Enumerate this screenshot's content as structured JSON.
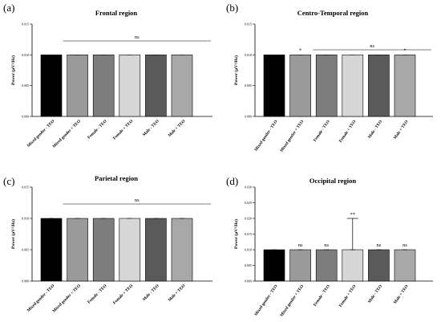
{
  "figure": {
    "panels": [
      {
        "letter": "(a)",
        "title": "Frontal region",
        "ylabel": "Power (µV²/Hz)",
        "sig_bracket": "ns",
        "bar_marks": [
          "",
          "",
          "",
          "",
          "",
          ""
        ]
      },
      {
        "letter": "(b)",
        "title": "Centro-Temporal region",
        "ylabel": "Power (µV²/Hz)",
        "sig_bracket": "ns",
        "bar_marks": [
          "",
          "*",
          "",
          "",
          "",
          "*"
        ]
      },
      {
        "letter": "(c)",
        "title": "Parietal region",
        "ylabel": "Power (µV²/Hz)",
        "sig_bracket": "ns",
        "bar_marks": [
          "",
          "",
          "",
          "",
          "",
          ""
        ]
      },
      {
        "letter": "(d)",
        "title": "Occipital region",
        "ylabel": "Power (µV²/Hz)",
        "sig_bracket": "",
        "bar_marks": [
          "",
          "ns",
          "ns",
          "**",
          "ns",
          "ns"
        ]
      }
    ]
  },
  "chart_data": [
    {
      "type": "bar",
      "title": "Frontal region",
      "ylabel": "Power (µV²/Hz)",
      "categories": [
        "Mixed gender - TEO",
        "Mixed gender + TEO",
        "Female - TEO",
        "Female + TEO",
        "Male - TEO",
        "Male + TEO"
      ],
      "values": [
        0.01,
        0.01,
        0.01,
        0.01,
        0.01,
        0.01
      ],
      "ylim": [
        0,
        0.015
      ],
      "yticks": [
        "0.000",
        "0.005",
        "0.010",
        "0.015"
      ],
      "bar_colors": [
        "#000000",
        "#9a9a9a",
        "#7d7d7d",
        "#d6d6d6",
        "#5a5a5a",
        "#a8a8a8"
      ]
    },
    {
      "type": "bar",
      "title": "Centro-Temporal region",
      "ylabel": "Power (µV²/Hz)",
      "categories": [
        "Mixed gender - TEO",
        "Mixed gender + TEO",
        "Female - TEO",
        "Female + TEO",
        "Male - TEO",
        "Male + TEO"
      ],
      "values": [
        0.01,
        0.01,
        0.01,
        0.01,
        0.01,
        0.01
      ],
      "ylim": [
        0,
        0.015
      ],
      "yticks": [
        "0.000",
        "0.005",
        "0.010",
        "0.015"
      ],
      "bar_colors": [
        "#000000",
        "#9a9a9a",
        "#7d7d7d",
        "#d6d6d6",
        "#5a5a5a",
        "#a8a8a8"
      ]
    },
    {
      "type": "bar",
      "title": "Parietal region",
      "ylabel": "Power (µV²/Hz)",
      "categories": [
        "Mixed gender - TEO",
        "Mixed gender + TEO",
        "Female - TEO",
        "Female + TEO",
        "Male - TEO",
        "Male + TEO"
      ],
      "values": [
        0.01,
        0.01,
        0.01,
        0.01,
        0.01,
        0.01
      ],
      "ylim": [
        0,
        0.015
      ],
      "yticks": [
        "0.000",
        "0.005",
        "0.010",
        "0.015"
      ],
      "bar_colors": [
        "#000000",
        "#9a9a9a",
        "#7d7d7d",
        "#d6d6d6",
        "#5a5a5a",
        "#a8a8a8"
      ]
    },
    {
      "type": "bar",
      "title": "Occipital region",
      "ylabel": "Power (µV²/Hz)",
      "categories": [
        "Mixed gender - TEO",
        "Mixed gender + TEO",
        "Female - TEO",
        "Female + TEO",
        "Male - TEO",
        "Male + TEO"
      ],
      "values": [
        0.01,
        0.01,
        0.01,
        0.01,
        0.01,
        0.01
      ],
      "error_upper": [
        0.01,
        0.01,
        0.01,
        0.02,
        0.01,
        0.01
      ],
      "ylim": [
        0,
        0.03
      ],
      "yticks": [
        "0.000",
        "0.005",
        "0.010",
        "0.015",
        "0.020",
        "0.025",
        "0.030"
      ],
      "bar_colors": [
        "#000000",
        "#9a9a9a",
        "#7d7d7d",
        "#d6d6d6",
        "#5a5a5a",
        "#a8a8a8"
      ]
    }
  ]
}
